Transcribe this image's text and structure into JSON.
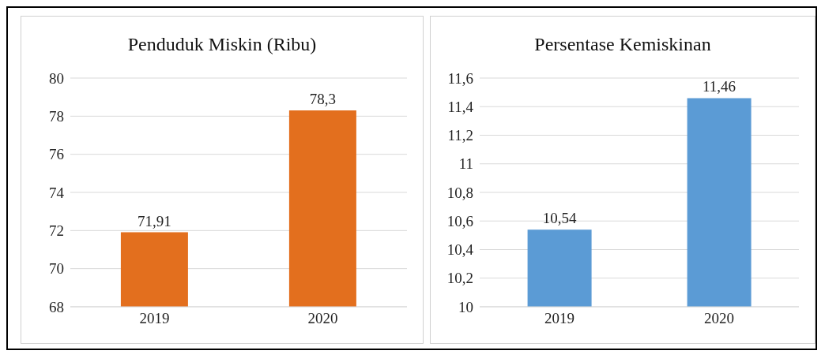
{
  "chart_data": [
    {
      "type": "bar",
      "title": "Penduduk Miskin  (Ribu)",
      "categories": [
        "2019",
        "2020"
      ],
      "values": [
        71.91,
        78.3
      ],
      "value_labels": [
        "71,91",
        "78,3"
      ],
      "color": "#e36f1e",
      "ylim": [
        68,
        80
      ],
      "yticks": [
        68,
        70,
        72,
        74,
        76,
        78,
        80
      ],
      "grid": "y"
    },
    {
      "type": "bar",
      "title": "Persentase Kemiskinan",
      "categories": [
        "2019",
        "2020"
      ],
      "values": [
        10.54,
        11.46
      ],
      "value_labels": [
        "10,54",
        "11,46"
      ],
      "color": "#5b9bd5",
      "ylim": [
        10,
        11.6
      ],
      "yticks": [
        10,
        {
          "value": 10.2,
          "label": "10,2"
        },
        {
          "value": 10.4,
          "label": "10,4"
        },
        {
          "value": 10.6,
          "label": "10,6"
        },
        {
          "value": 10.8,
          "label": "10,8"
        },
        11,
        {
          "value": 11.2,
          "label": "11,2"
        },
        {
          "value": 11.4,
          "label": "11,4"
        },
        {
          "value": 11.6,
          "label": "11,6"
        }
      ],
      "grid": "y"
    }
  ]
}
